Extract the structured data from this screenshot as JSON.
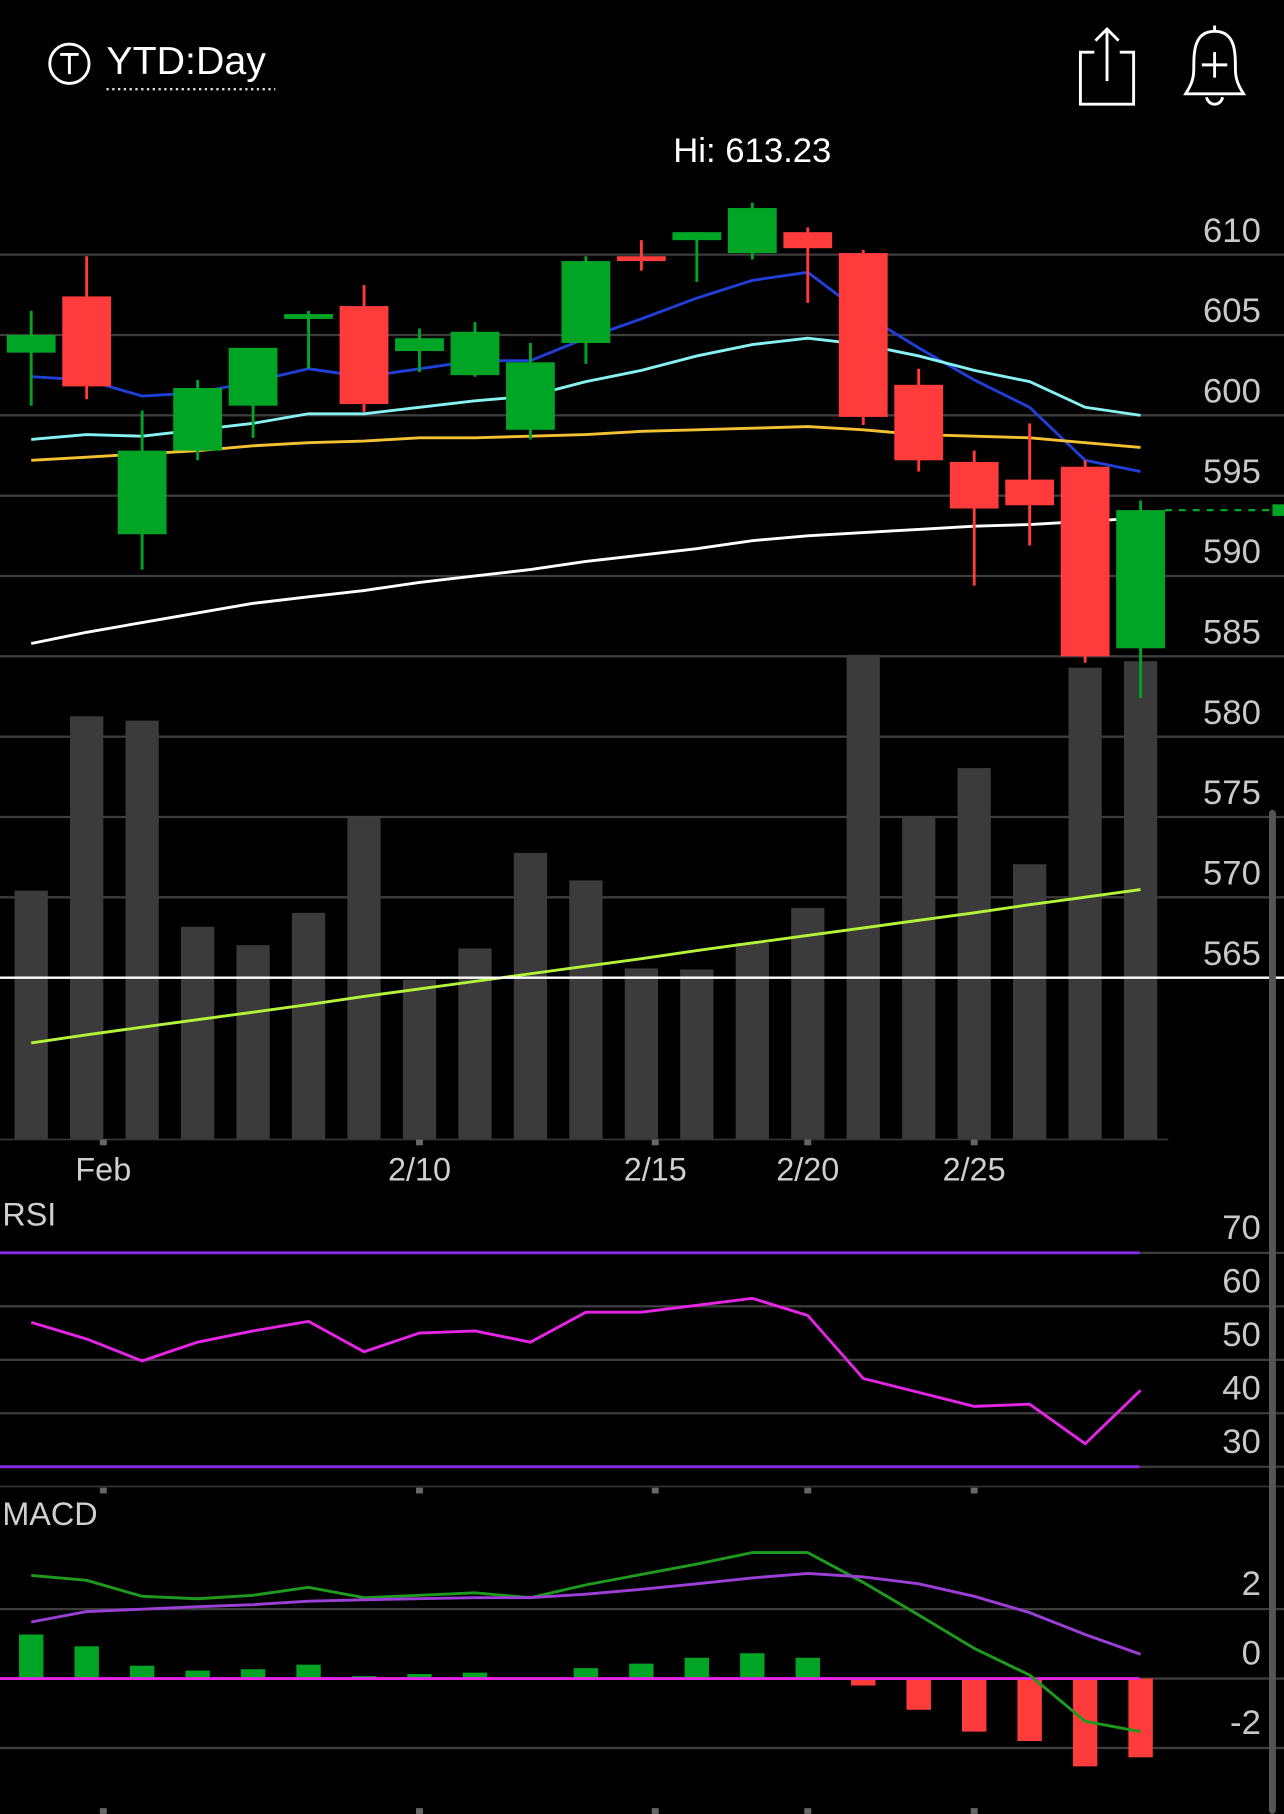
{
  "header": {
    "title": "YTD:Day"
  },
  "chart_data": [
    {
      "type": "candlestick",
      "annotation": "Hi: 613.23",
      "xlim": [
        -0.5625,
        20.5
      ],
      "xticks": [
        {
          "value": 1.3,
          "label": "Feb"
        },
        {
          "value": 7,
          "label": "2/10"
        },
        {
          "value": 11.25,
          "label": "2/15"
        },
        {
          "value": 14,
          "label": "2/20"
        },
        {
          "value": 17,
          "label": "2/25"
        }
      ],
      "open": [
        603.9,
        607.4,
        592.6,
        597.8,
        600.6,
        606.0,
        606.8,
        604.0,
        602.5,
        599.1,
        604.5,
        609.9,
        610.9,
        610.1,
        611.4,
        610.1,
        601.9,
        597.1,
        596.0,
        596.8,
        585.5
      ],
      "high": [
        606.5,
        609.9,
        600.3,
        602.2,
        604.2,
        606.5,
        608.1,
        605.4,
        605.8,
        604.5,
        609.9,
        610.9,
        611.4,
        613.23,
        611.7,
        610.3,
        602.9,
        597.8,
        599.5,
        597.2,
        594.7
      ],
      "low": [
        600.6,
        601.0,
        590.4,
        597.2,
        598.6,
        602.9,
        600.2,
        602.7,
        602.4,
        598.5,
        603.2,
        609.0,
        608.3,
        609.7,
        607.0,
        599.4,
        596.5,
        589.4,
        591.9,
        584.6,
        582.4
      ],
      "close": [
        605.0,
        601.8,
        597.8,
        601.7,
        604.2,
        606.3,
        600.7,
        604.8,
        605.2,
        603.3,
        609.6,
        609.6,
        611.4,
        612.9,
        610.4,
        599.9,
        597.2,
        594.2,
        594.4,
        585.0,
        594.1
      ],
      "up_color": "#00a526",
      "down_color": "#ff3b3b",
      "overlays": [
        {
          "color": "#1f3fd6",
          "values": [
            602.4,
            602.2,
            601.2,
            601.4,
            602.1,
            602.9,
            602.4,
            602.9,
            603.4,
            603.4,
            604.8,
            606.0,
            607.3,
            608.4,
            608.9,
            606.3,
            604.2,
            602.2,
            600.5,
            597.2,
            596.5
          ]
        },
        {
          "color": "#86f2f2",
          "values": [
            598.5,
            598.8,
            598.7,
            599.1,
            599.5,
            600.1,
            600.1,
            600.5,
            600.9,
            601.2,
            602.1,
            602.8,
            603.7,
            604.4,
            604.8,
            604.4,
            603.7,
            602.8,
            602.1,
            600.5,
            600.0
          ]
        },
        {
          "color": "#f2c232",
          "values": [
            597.2,
            597.4,
            597.6,
            597.8,
            598.1,
            598.3,
            598.4,
            598.6,
            598.6,
            598.7,
            598.8,
            599.0,
            599.1,
            599.2,
            599.3,
            599.1,
            598.8,
            598.7,
            598.6,
            598.3,
            598.0
          ]
        },
        {
          "color": "#ffffff",
          "values": [
            585.8,
            586.5,
            587.1,
            587.7,
            588.3,
            588.7,
            589.1,
            589.6,
            590.0,
            590.4,
            590.9,
            591.3,
            591.7,
            592.2,
            592.5,
            592.7,
            592.9,
            593.1,
            593.2,
            593.4,
            593.6
          ]
        }
      ],
      "volume": {
        "color": "#3b3b3b",
        "lim": [
          0,
          90
        ],
        "values": [
          46.1,
          78.4,
          77.6,
          39.4,
          36.0,
          42.0,
          59.6,
          29.6,
          35.4,
          53.1,
          48.0,
          31.7,
          31.5,
          36.4,
          42.9,
          89.8,
          59.8,
          68.8,
          51.0,
          87.4,
          88.6
        ],
        "average": {
          "color": "#b5f23a",
          "values": [
            17.9,
            19.4,
            20.8,
            22.2,
            23.6,
            25.0,
            26.5,
            27.9,
            29.3,
            30.7,
            32.1,
            33.5,
            35.0,
            36.4,
            37.8,
            39.2,
            40.6,
            42.0,
            43.5,
            44.9,
            46.3
          ]
        }
      },
      "hline": {
        "value": 565,
        "color": "#ffffff"
      },
      "ylim": [
        555,
        615
      ],
      "yticks": [
        565,
        570,
        575,
        580,
        585,
        590,
        595,
        600,
        605,
        610
      ],
      "grid": true
    },
    {
      "type": "line",
      "title": "RSI",
      "series": [
        {
          "color": "#e524e5",
          "values": [
            57.0,
            53.9,
            49.8,
            53.3,
            55.4,
            57.2,
            51.5,
            55.0,
            55.4,
            53.3,
            58.9,
            58.9,
            60.2,
            61.5,
            58.3,
            46.5,
            43.9,
            41.3,
            41.7,
            34.3,
            44.3
          ]
        }
      ],
      "levels": [
        70,
        30
      ],
      "level_color": "#8a2be2",
      "ylim": [
        26.3,
        79.3
      ],
      "yticks": [
        30,
        40,
        50,
        60,
        70
      ],
      "grid": true
    },
    {
      "type": "macd",
      "title": "MACD",
      "series": [
        {
          "color": "#1e9a1e",
          "values": [
            2.97,
            2.83,
            2.37,
            2.3,
            2.4,
            2.63,
            2.33,
            2.4,
            2.47,
            2.33,
            2.7,
            3.0,
            3.3,
            3.63,
            3.63,
            2.77,
            1.83,
            0.87,
            0.1,
            -1.23,
            -1.53
          ]
        },
        {
          "color": "#9b3fd6",
          "values": [
            1.63,
            1.93,
            2.0,
            2.07,
            2.13,
            2.23,
            2.27,
            2.3,
            2.33,
            2.33,
            2.43,
            2.57,
            2.73,
            2.9,
            3.03,
            2.93,
            2.73,
            2.37,
            1.9,
            1.27,
            0.7
          ]
        }
      ],
      "histogram": [
        1.27,
        0.93,
        0.37,
        0.23,
        0.27,
        0.4,
        0.07,
        0.13,
        0.17,
        0,
        0.3,
        0.43,
        0.6,
        0.73,
        0.6,
        -0.2,
        -0.9,
        -1.53,
        -1.8,
        -2.53,
        -2.27
      ],
      "up_color": "#00a526",
      "down_color": "#ff3b3b",
      "zero_color": "#e524e5",
      "ylim": [
        -3.9,
        5.2
      ],
      "yticks": [
        -2,
        0,
        2
      ],
      "grid": true
    }
  ]
}
